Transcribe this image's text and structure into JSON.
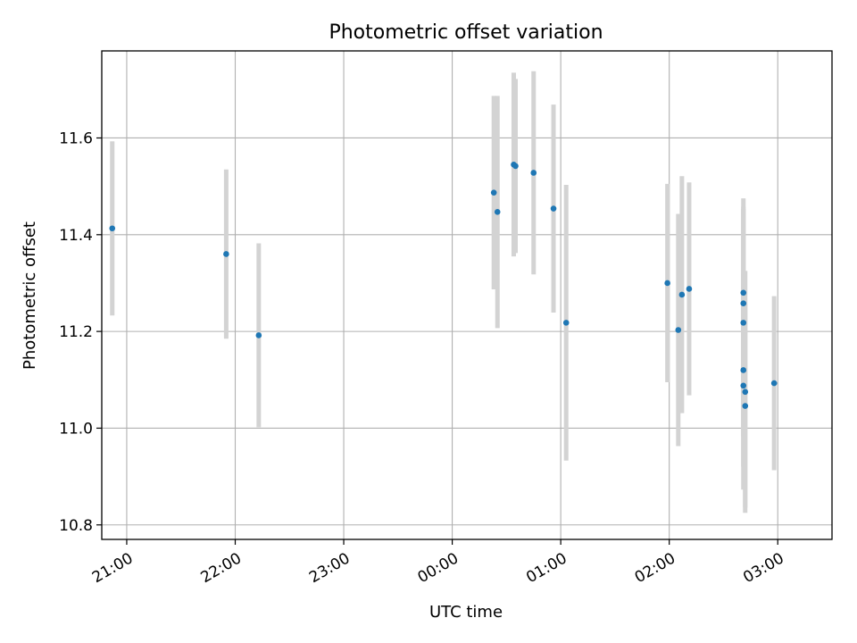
{
  "chart_data": {
    "type": "scatter",
    "title": "Photometric offset variation",
    "xlabel": "UTC time",
    "ylabel": "Photometric offset",
    "xlim_hours": [
      20.77,
      27.5
    ],
    "ylim": [
      10.77,
      11.78
    ],
    "grid": true,
    "x_ticks": [
      {
        "hours": 21,
        "label": "21:00"
      },
      {
        "hours": 22,
        "label": "22:00"
      },
      {
        "hours": 23,
        "label": "23:00"
      },
      {
        "hours": 24,
        "label": "00:00"
      },
      {
        "hours": 25,
        "label": "01:00"
      },
      {
        "hours": 26,
        "label": "02:00"
      },
      {
        "hours": 27,
        "label": "03:00"
      }
    ],
    "y_ticks": [
      {
        "value": 10.8,
        "label": "10.8"
      },
      {
        "value": 11.0,
        "label": "11.0"
      },
      {
        "value": 11.2,
        "label": "11.2"
      },
      {
        "value": 11.4,
        "label": "11.4"
      },
      {
        "value": 11.6,
        "label": "11.6"
      }
    ],
    "colors": {
      "points": "#1f77b4",
      "error_bars": "#d3d3d3",
      "grid": "#b0b0b0"
    },
    "points": [
      {
        "time": "20:52",
        "y": 11.413,
        "err": 0.18
      },
      {
        "time": "21:55",
        "y": 11.36,
        "err": 0.175
      },
      {
        "time": "22:13",
        "y": 11.192,
        "err": 0.19
      },
      {
        "time": "00:23",
        "y": 11.487,
        "err": 0.2
      },
      {
        "time": "00:25",
        "y": 11.447,
        "err": 0.24
      },
      {
        "time": "00:34",
        "y": 11.545,
        "err": 0.19
      },
      {
        "time": "00:35",
        "y": 11.542,
        "err": 0.18
      },
      {
        "time": "00:45",
        "y": 11.528,
        "err": 0.21
      },
      {
        "time": "00:56",
        "y": 11.454,
        "err": 0.215
      },
      {
        "time": "01:03",
        "y": 11.218,
        "err": 0.285
      },
      {
        "time": "01:59",
        "y": 11.3,
        "err": 0.205
      },
      {
        "time": "02:05",
        "y": 11.203,
        "err": 0.24
      },
      {
        "time": "02:07",
        "y": 11.276,
        "err": 0.245
      },
      {
        "time": "02:11",
        "y": 11.288,
        "err": 0.22
      },
      {
        "time": "02:41",
        "y": 11.28,
        "err": 0.195
      },
      {
        "time": "02:41",
        "y": 11.258,
        "err": 0.2
      },
      {
        "time": "02:41",
        "y": 11.218,
        "err": 0.235
      },
      {
        "time": "02:41",
        "y": 11.12,
        "err": 0.2
      },
      {
        "time": "02:41",
        "y": 11.088,
        "err": 0.215
      },
      {
        "time": "02:42",
        "y": 11.075,
        "err": 0.25
      },
      {
        "time": "02:42",
        "y": 11.046,
        "err": 0.21
      },
      {
        "time": "02:58",
        "y": 11.093,
        "err": 0.18
      }
    ]
  }
}
